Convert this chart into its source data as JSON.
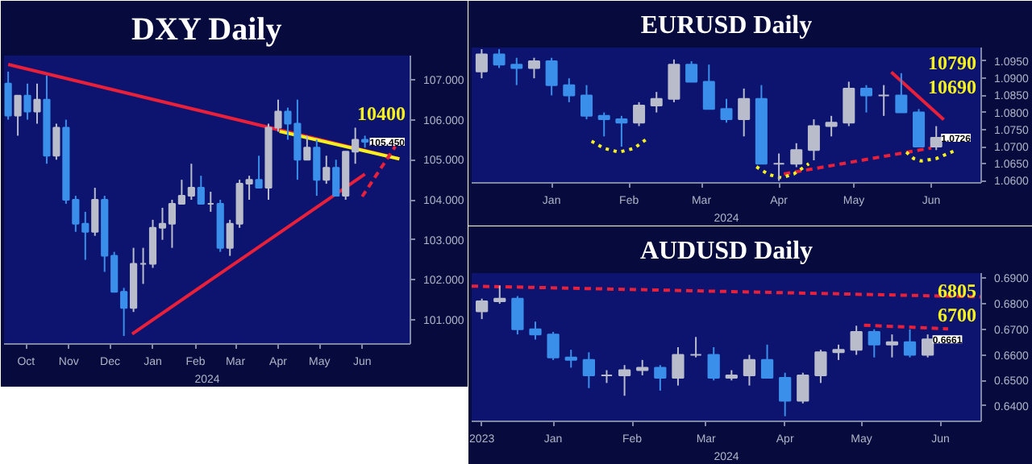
{
  "chart_data": [
    {
      "type": "candlestick",
      "title": "DXY Daily",
      "xlabel": "2024",
      "x": [
        "2023-10-02",
        "2023-10-09",
        "2023-10-16",
        "2023-10-23",
        "2023-10-30",
        "2023-11-06",
        "2023-11-13",
        "2023-11-20",
        "2023-11-27",
        "2023-12-04",
        "2023-12-11",
        "2023-12-18",
        "2023-12-25",
        "2024-01-01",
        "2024-01-08",
        "2024-01-15",
        "2024-01-22",
        "2024-01-29",
        "2024-02-05",
        "2024-02-12",
        "2024-02-19",
        "2024-02-26",
        "2024-03-04",
        "2024-03-11",
        "2024-03-18",
        "2024-03-25",
        "2024-04-01",
        "2024-04-08",
        "2024-04-15",
        "2024-04-22",
        "2024-04-29",
        "2024-05-06",
        "2024-05-13",
        "2024-05-20",
        "2024-05-27",
        "2024-06-03",
        "2024-06-10",
        "2024-06-17"
      ],
      "ohlc": [
        [
          106.9,
          107.2,
          106.0,
          106.1
        ],
        [
          106.1,
          106.6,
          105.6,
          106.6
        ],
        [
          106.6,
          106.9,
          106.0,
          106.2
        ],
        [
          106.2,
          106.9,
          105.9,
          106.5
        ],
        [
          106.5,
          107.1,
          104.9,
          105.1
        ],
        [
          105.1,
          105.9,
          105.0,
          105.8
        ],
        [
          105.8,
          106.0,
          103.9,
          104.0
        ],
        [
          104.0,
          104.1,
          103.2,
          103.4
        ],
        [
          103.4,
          103.7,
          102.5,
          103.2
        ],
        [
          103.2,
          104.3,
          103.1,
          104.0
        ],
        [
          104.0,
          104.1,
          102.2,
          102.6
        ],
        [
          102.6,
          102.7,
          101.7,
          101.7
        ],
        [
          101.7,
          101.8,
          100.6,
          101.3
        ],
        [
          101.3,
          102.8,
          101.2,
          102.4
        ],
        [
          102.4,
          102.8,
          101.9,
          102.4
        ],
        [
          102.4,
          103.5,
          102.3,
          103.3
        ],
        [
          103.3,
          103.8,
          103.0,
          103.4
        ],
        [
          103.4,
          104.0,
          102.8,
          103.9
        ],
        [
          103.9,
          104.5,
          103.9,
          104.1
        ],
        [
          104.1,
          104.9,
          104.0,
          104.3
        ],
        [
          104.3,
          104.6,
          103.9,
          103.9
        ],
        [
          103.9,
          104.2,
          103.7,
          103.9
        ],
        [
          103.9,
          104.0,
          102.7,
          102.8
        ],
        [
          102.8,
          103.5,
          102.6,
          103.4
        ],
        [
          103.4,
          104.5,
          103.3,
          104.4
        ],
        [
          104.4,
          104.6,
          104.0,
          104.5
        ],
        [
          104.5,
          105.1,
          104.3,
          104.3
        ],
        [
          104.3,
          105.9,
          104.0,
          105.8
        ],
        [
          105.8,
          106.5,
          105.7,
          106.2
        ],
        [
          106.2,
          106.3,
          105.5,
          105.9
        ],
        [
          105.9,
          106.5,
          104.5,
          105.0
        ],
        [
          105.0,
          105.6,
          105.0,
          105.3
        ],
        [
          105.3,
          105.5,
          104.1,
          104.5
        ],
        [
          104.5,
          105.1,
          104.4,
          104.8
        ],
        [
          104.8,
          105.0,
          104.1,
          104.1
        ],
        [
          104.1,
          105.2,
          104.0,
          105.2
        ],
        [
          105.2,
          105.8,
          104.9,
          105.5
        ],
        [
          105.5,
          105.6,
          105.3,
          105.45
        ]
      ],
      "series": [
        {
          "type": "line",
          "x": [
            "2023-10-02",
            "2024-07-12"
          ],
          "values": [
            107.38,
            105.02
          ],
          "color": "#e8203a",
          "line_style": "solid"
        },
        {
          "type": "line",
          "x": [
            "2024-04-16",
            "2024-07-12"
          ],
          "values": [
            105.71,
            105.02
          ],
          "color": "#f5f020",
          "line_style": "solid"
        },
        {
          "type": "line",
          "x": [
            "2023-12-31",
            "2024-06-17"
          ],
          "values": [
            100.65,
            104.64
          ],
          "color": "#e8203a",
          "line_style": "solid"
        },
        {
          "type": "line",
          "x": [
            "2024-06-15",
            "2024-07-09"
          ],
          "values": [
            104.08,
            105.33
          ],
          "color": "#e8203a",
          "line_style": "dashed"
        }
      ],
      "xlim": [
        "2023-09-29",
        "2024-07-20"
      ],
      "ylim": [
        100.4,
        107.6
      ],
      "xticks": [
        {
          "value": "2023-10-15",
          "label": "Oct"
        },
        {
          "value": "2023-11-15",
          "label": "Nov"
        },
        {
          "value": "2023-12-15",
          "label": "Dec"
        },
        {
          "value": "2024-01-15",
          "label": "Jan"
        },
        {
          "value": "2024-02-15",
          "label": "Feb"
        },
        {
          "value": "2024-03-15",
          "label": "Mar"
        },
        {
          "value": "2024-04-15",
          "label": "Apr"
        },
        {
          "value": "2024-05-15",
          "label": "May"
        },
        {
          "value": "2024-06-15",
          "label": "Jun"
        }
      ],
      "yticks": [
        {
          "value": 101,
          "label": "101.000"
        },
        {
          "value": 102,
          "label": "102.000"
        },
        {
          "value": 103,
          "label": "103.000"
        },
        {
          "value": 104,
          "label": "104.000"
        },
        {
          "value": 105,
          "label": "105.000"
        },
        {
          "value": 106,
          "label": "106.000"
        },
        {
          "value": 107,
          "label": "107.000"
        }
      ],
      "annotations": [
        "10400",
        {
          "text": "105.450",
          "x": "2024-06-17",
          "y": 105.45
        }
      ]
    },
    {
      "type": "candlestick",
      "title": "EURUSD Daily",
      "xlabel": "2024",
      "x": [
        "2023-12-18",
        "2023-12-25",
        "2024-01-01",
        "2024-01-08",
        "2024-01-15",
        "2024-01-22",
        "2024-01-29",
        "2024-02-05",
        "2024-02-12",
        "2024-02-19",
        "2024-02-26",
        "2024-03-04",
        "2024-03-11",
        "2024-03-18",
        "2024-03-25",
        "2024-04-01",
        "2024-04-08",
        "2024-04-15",
        "2024-04-22",
        "2024-04-29",
        "2024-05-06",
        "2024-05-13",
        "2024-05-20",
        "2024-05-27",
        "2024-06-03",
        "2024-06-10",
        "2024-06-17"
      ],
      "ohlc": [
        [
          1.092,
          1.0985,
          1.09,
          1.097
        ],
        [
          1.097,
          1.0985,
          1.093,
          1.094
        ],
        [
          1.094,
          1.096,
          1.088,
          1.093
        ],
        [
          1.093,
          1.096,
          1.09,
          1.095
        ],
        [
          1.095,
          1.096,
          1.085,
          1.088
        ],
        [
          1.088,
          1.09,
          1.083,
          1.085
        ],
        [
          1.085,
          1.088,
          1.078,
          1.079
        ],
        [
          1.079,
          1.08,
          1.073,
          1.078
        ],
        [
          1.078,
          1.079,
          1.07,
          1.077
        ],
        [
          1.077,
          1.083,
          1.076,
          1.082
        ],
        [
          1.082,
          1.086,
          1.08,
          1.084
        ],
        [
          1.084,
          1.0955,
          1.083,
          1.094
        ],
        [
          1.094,
          1.095,
          1.089,
          1.089
        ],
        [
          1.089,
          1.094,
          1.081,
          1.081
        ],
        [
          1.081,
          1.084,
          1.077,
          1.078
        ],
        [
          1.078,
          1.087,
          1.073,
          1.084
        ],
        [
          1.084,
          1.088,
          1.065,
          1.065
        ],
        [
          1.065,
          1.068,
          1.06,
          1.065
        ],
        [
          1.065,
          1.071,
          1.064,
          1.069
        ],
        [
          1.069,
          1.078,
          1.066,
          1.076
        ],
        [
          1.076,
          1.079,
          1.073,
          1.077
        ],
        [
          1.077,
          1.089,
          1.076,
          1.087
        ],
        [
          1.087,
          1.088,
          1.08,
          1.085
        ],
        [
          1.085,
          1.088,
          1.079,
          1.085
        ],
        [
          1.085,
          1.0915,
          1.08,
          1.08
        ],
        [
          1.08,
          1.081,
          1.07,
          1.07
        ],
        [
          1.07,
          1.076,
          1.069,
          1.0726
        ]
      ],
      "series": [
        {
          "type": "line",
          "x": [
            "2024-05-30",
            "2024-06-20"
          ],
          "values": [
            1.0918,
            1.0779
          ],
          "color": "#e8203a",
          "line_style": "solid"
        },
        {
          "type": "line",
          "x": [
            "2024-04-17",
            "2024-06-15"
          ],
          "values": [
            1.062,
            1.0696
          ],
          "color": "#e8203a",
          "line_style": "dashed"
        },
        {
          "type": "line",
          "x": [
            "2024-01-31",
            "2024-02-05",
            "2024-02-11",
            "2024-02-17",
            "2024-02-22"
          ],
          "values": [
            1.0716,
            1.0695,
            1.0684,
            1.0695,
            1.0722
          ],
          "color": "#f5f020",
          "line_style": "dotted"
        },
        {
          "type": "line",
          "x": [
            "2024-04-06",
            "2024-04-11",
            "2024-04-16",
            "2024-04-21",
            "2024-04-27"
          ],
          "values": [
            1.0641,
            1.0618,
            1.0609,
            1.062,
            1.065
          ],
          "color": "#f5f020",
          "line_style": "dotted"
        },
        {
          "type": "line",
          "x": [
            "2024-06-05",
            "2024-06-08",
            "2024-06-11",
            "2024-06-17",
            "2024-06-24"
          ],
          "values": [
            1.0684,
            1.0665,
            1.0658,
            1.0665,
            1.0687
          ],
          "color": "#f5f020",
          "line_style": "dotted"
        }
      ],
      "xlim": [
        "2023-12-14",
        "2024-07-05"
      ],
      "ylim": [
        1.0594,
        1.099
      ],
      "xticks": [
        {
          "value": "2024-01-15",
          "label": "Jan"
        },
        {
          "value": "2024-02-15",
          "label": "Feb"
        },
        {
          "value": "2024-03-15",
          "label": "Mar"
        },
        {
          "value": "2024-04-15",
          "label": "Apr"
        },
        {
          "value": "2024-05-15",
          "label": "May"
        },
        {
          "value": "2024-06-15",
          "label": "Jun"
        }
      ],
      "yticks": [
        {
          "value": 1.06,
          "label": "1.0600"
        },
        {
          "value": 1.065,
          "label": "1.0650"
        },
        {
          "value": 1.07,
          "label": "1.0700"
        },
        {
          "value": 1.075,
          "label": "1.0750"
        },
        {
          "value": 1.08,
          "label": "1.0800"
        },
        {
          "value": 1.085,
          "label": "1.0850"
        },
        {
          "value": 1.09,
          "label": "1.0900"
        },
        {
          "value": 1.095,
          "label": "1.0950"
        }
      ],
      "annotations": [
        "10790",
        "10690",
        {
          "text": "1.0726",
          "x": "2024-06-17",
          "y": 1.0726
        }
      ]
    },
    {
      "type": "candlestick",
      "title": "AUDUSD Daily",
      "xlabel": "2024",
      "x": [
        "2023-12-18",
        "2023-12-25",
        "2024-01-01",
        "2024-01-08",
        "2024-01-15",
        "2024-01-22",
        "2024-01-29",
        "2024-02-05",
        "2024-02-12",
        "2024-02-19",
        "2024-02-26",
        "2024-03-04",
        "2024-03-11",
        "2024-03-18",
        "2024-03-25",
        "2024-04-01",
        "2024-04-08",
        "2024-04-15",
        "2024-04-22",
        "2024-04-29",
        "2024-05-06",
        "2024-05-13",
        "2024-05-20",
        "2024-05-27",
        "2024-06-03",
        "2024-06-10"
      ],
      "ohlc": [
        [
          0.677,
          0.682,
          0.674,
          0.681
        ],
        [
          0.681,
          0.6871,
          0.68,
          0.682
        ],
        [
          0.682,
          0.683,
          0.668,
          0.67
        ],
        [
          0.67,
          0.673,
          0.666,
          0.668
        ],
        [
          0.668,
          0.669,
          0.658,
          0.659
        ],
        [
          0.659,
          0.662,
          0.655,
          0.658
        ],
        [
          0.658,
          0.661,
          0.647,
          0.652
        ],
        [
          0.652,
          0.654,
          0.649,
          0.652
        ],
        [
          0.652,
          0.656,
          0.644,
          0.654
        ],
        [
          0.654,
          0.658,
          0.652,
          0.655
        ],
        [
          0.655,
          0.656,
          0.646,
          0.651
        ],
        [
          0.651,
          0.663,
          0.648,
          0.66
        ],
        [
          0.66,
          0.667,
          0.659,
          0.66
        ],
        [
          0.66,
          0.663,
          0.65,
          0.651
        ],
        [
          0.651,
          0.654,
          0.65,
          0.652
        ],
        [
          0.652,
          0.66,
          0.648,
          0.658
        ],
        [
          0.658,
          0.664,
          0.651,
          0.651
        ],
        [
          0.651,
          0.653,
          0.636,
          0.642
        ],
        [
          0.642,
          0.653,
          0.641,
          0.652
        ],
        [
          0.652,
          0.662,
          0.649,
          0.661
        ],
        [
          0.661,
          0.664,
          0.658,
          0.662
        ],
        [
          0.662,
          0.6714,
          0.66,
          0.669
        ],
        [
          0.669,
          0.67,
          0.659,
          0.664
        ],
        [
          0.664,
          0.668,
          0.659,
          0.665
        ],
        [
          0.665,
          0.67,
          0.659,
          0.66
        ],
        [
          0.66,
          0.668,
          0.659,
          0.6661
        ]
      ],
      "series": [
        {
          "type": "line",
          "x": [
            "2023-12-14",
            "2024-07-01"
          ],
          "values": [
            0.6869,
            0.6827
          ],
          "color": "#e8203a",
          "line_style": "dashed"
        },
        {
          "type": "line",
          "x": [
            "2024-05-16",
            "2024-06-18"
          ],
          "values": [
            0.6716,
            0.6702
          ],
          "color": "#e8203a",
          "line_style": "dashed"
        }
      ],
      "xlim": [
        "2023-12-14",
        "2024-07-01"
      ],
      "ylim": [
        0.634,
        0.692
      ],
      "xticks": [
        {
          "value": "2023-12-18",
          "label": "2023"
        },
        {
          "value": "2024-01-15",
          "label": "Jan"
        },
        {
          "value": "2024-02-15",
          "label": "Feb"
        },
        {
          "value": "2024-03-15",
          "label": "Mar"
        },
        {
          "value": "2024-04-15",
          "label": "Apr"
        },
        {
          "value": "2024-05-15",
          "label": "May"
        },
        {
          "value": "2024-06-15",
          "label": "Jun"
        }
      ],
      "yticks": [
        {
          "value": 0.64,
          "label": "0.6400"
        },
        {
          "value": 0.65,
          "label": "0.6500"
        },
        {
          "value": 0.66,
          "label": "0.6600"
        },
        {
          "value": 0.67,
          "label": "0.6700"
        },
        {
          "value": 0.68,
          "label": "0.6800"
        },
        {
          "value": 0.69,
          "label": "0.6900"
        }
      ],
      "annotations": [
        "6805",
        "6700",
        {
          "text": "0.6661",
          "x": "2024-06-10",
          "y": 0.6661
        }
      ]
    }
  ]
}
